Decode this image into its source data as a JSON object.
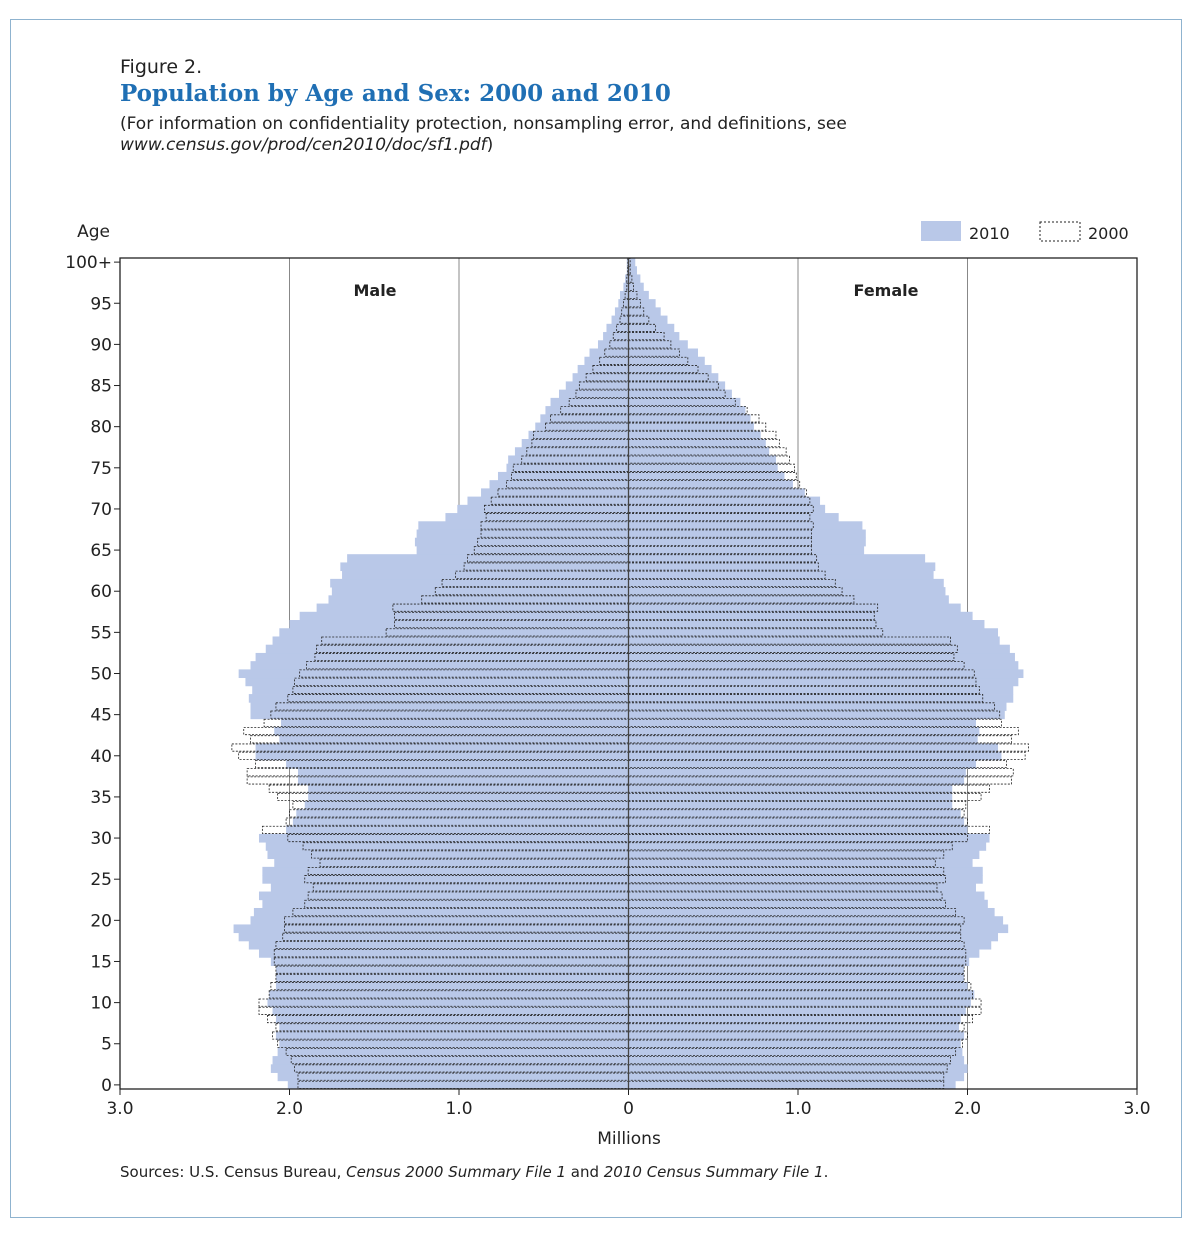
{
  "figure": {
    "label": "Figure 2.",
    "title": "Population by Age and Sex: 2000 and 2010",
    "note_prefix": "(For information on confidentiality protection, nonsampling error, and definitions, see ",
    "note_url": "www.census.gov/prod/cen2010/doc/sf1.pdf",
    "note_suffix": ")",
    "sources_prefix": "Sources: U.S. Census Bureau, ",
    "sources_item1": "Census 2000 Summary File 1",
    "sources_and": " and ",
    "sources_item2": "2010 Census Summary File 1",
    "sources_suffix": "."
  },
  "chart_data": {
    "type": "bar",
    "orientation": "horizontal-population-pyramid",
    "ylabel": "Age",
    "xlabel": "Millions",
    "y_tick_labels": [
      "0",
      "5",
      "10",
      "15",
      "20",
      "25",
      "30",
      "35",
      "40",
      "45",
      "50",
      "55",
      "60",
      "65",
      "70",
      "75",
      "80",
      "85",
      "90",
      "95",
      "100+"
    ],
    "x_tick_labels": [
      "3.0",
      "2.0",
      "1.0",
      "0",
      "1.0",
      "2.0",
      "3.0"
    ],
    "xlim": [
      -3.0,
      3.0
    ],
    "panel_labels": {
      "left": "Male",
      "right": "Female"
    },
    "legend": [
      {
        "name": "2010",
        "style": "filled",
        "color": "#b9c8e8"
      },
      {
        "name": "2000",
        "style": "dotted-outline",
        "color": "#222222"
      }
    ],
    "legend_position": "top-right",
    "grid": {
      "vertical_lines_at": [
        -2.0,
        -1.0,
        1.0,
        2.0
      ]
    },
    "ages": [
      0,
      1,
      2,
      3,
      4,
      5,
      6,
      7,
      8,
      9,
      10,
      11,
      12,
      13,
      14,
      15,
      16,
      17,
      18,
      19,
      20,
      21,
      22,
      23,
      24,
      25,
      26,
      27,
      28,
      29,
      30,
      31,
      32,
      33,
      34,
      35,
      36,
      37,
      38,
      39,
      40,
      41,
      42,
      43,
      44,
      45,
      46,
      47,
      48,
      49,
      50,
      51,
      52,
      53,
      54,
      55,
      56,
      57,
      58,
      59,
      60,
      61,
      62,
      63,
      64,
      65,
      66,
      67,
      68,
      69,
      70,
      71,
      72,
      73,
      74,
      75,
      76,
      77,
      78,
      79,
      80,
      81,
      82,
      83,
      84,
      85,
      86,
      87,
      88,
      89,
      90,
      91,
      92,
      93,
      94,
      95,
      96,
      97,
      98,
      99,
      100
    ],
    "series": [
      {
        "name": "2010",
        "sex": "Male",
        "values": [
          2.01,
          2.07,
          2.11,
          2.1,
          2.07,
          2.06,
          2.08,
          2.06,
          2.08,
          2.1,
          2.13,
          2.12,
          2.08,
          2.08,
          2.08,
          2.11,
          2.18,
          2.24,
          2.3,
          2.33,
          2.23,
          2.21,
          2.16,
          2.18,
          2.11,
          2.16,
          2.16,
          2.09,
          2.13,
          2.14,
          2.18,
          2.02,
          1.98,
          1.96,
          1.91,
          1.89,
          1.89,
          1.95,
          1.95,
          2.02,
          2.2,
          2.2,
          2.06,
          2.09,
          2.05,
          2.23,
          2.23,
          2.24,
          2.22,
          2.26,
          2.3,
          2.23,
          2.2,
          2.14,
          2.1,
          2.06,
          2.0,
          1.94,
          1.84,
          1.77,
          1.75,
          1.76,
          1.69,
          1.7,
          1.66,
          1.25,
          1.26,
          1.25,
          1.24,
          1.08,
          1.01,
          0.95,
          0.87,
          0.82,
          0.77,
          0.72,
          0.71,
          0.67,
          0.63,
          0.59,
          0.55,
          0.52,
          0.49,
          0.46,
          0.41,
          0.37,
          0.33,
          0.3,
          0.26,
          0.23,
          0.18,
          0.15,
          0.13,
          0.1,
          0.08,
          0.06,
          0.05,
          0.03,
          0.02,
          0.01,
          0.01
        ]
      },
      {
        "name": "2000",
        "sex": "Male",
        "values": [
          1.95,
          1.95,
          1.97,
          1.99,
          2.02,
          2.07,
          2.1,
          2.08,
          2.13,
          2.18,
          2.18,
          2.12,
          2.11,
          2.08,
          2.08,
          2.09,
          2.09,
          2.08,
          2.04,
          2.03,
          2.03,
          1.98,
          1.91,
          1.89,
          1.86,
          1.91,
          1.89,
          1.82,
          1.87,
          1.92,
          2.01,
          2.16,
          2.02,
          2.0,
          1.98,
          2.07,
          2.12,
          2.25,
          2.25,
          2.2,
          2.3,
          2.34,
          2.23,
          2.27,
          2.15,
          2.11,
          2.08,
          2.01,
          1.98,
          1.97,
          1.94,
          1.9,
          1.85,
          1.84,
          1.81,
          1.43,
          1.38,
          1.38,
          1.39,
          1.22,
          1.14,
          1.1,
          1.02,
          0.97,
          0.95,
          0.91,
          0.89,
          0.87,
          0.87,
          0.84,
          0.85,
          0.81,
          0.77,
          0.72,
          0.69,
          0.68,
          0.63,
          0.6,
          0.57,
          0.56,
          0.49,
          0.46,
          0.4,
          0.35,
          0.31,
          0.29,
          0.25,
          0.21,
          0.17,
          0.14,
          0.11,
          0.09,
          0.07,
          0.05,
          0.04,
          0.03,
          0.02,
          0.01,
          0.01,
          0.005,
          0.004
        ]
      },
      {
        "name": "2010",
        "sex": "Female",
        "values": [
          1.93,
          1.98,
          2.0,
          1.98,
          1.97,
          1.96,
          1.98,
          1.95,
          1.96,
          1.99,
          2.02,
          2.04,
          2.0,
          1.98,
          1.98,
          2.01,
          2.07,
          2.14,
          2.18,
          2.24,
          2.21,
          2.16,
          2.12,
          2.1,
          2.05,
          2.09,
          2.09,
          2.03,
          2.07,
          2.11,
          2.13,
          2.0,
          1.98,
          1.96,
          1.91,
          1.91,
          1.91,
          1.98,
          1.99,
          2.05,
          2.2,
          2.18,
          2.06,
          2.07,
          2.05,
          2.22,
          2.23,
          2.27,
          2.27,
          2.3,
          2.33,
          2.3,
          2.28,
          2.25,
          2.19,
          2.18,
          2.1,
          2.03,
          1.96,
          1.89,
          1.87,
          1.86,
          1.8,
          1.81,
          1.75,
          1.39,
          1.4,
          1.4,
          1.38,
          1.24,
          1.16,
          1.13,
          1.04,
          0.97,
          0.92,
          0.88,
          0.87,
          0.83,
          0.81,
          0.78,
          0.74,
          0.72,
          0.69,
          0.66,
          0.61,
          0.57,
          0.53,
          0.49,
          0.45,
          0.41,
          0.35,
          0.3,
          0.27,
          0.23,
          0.19,
          0.16,
          0.12,
          0.09,
          0.07,
          0.05,
          0.04
        ]
      },
      {
        "name": "2000",
        "sex": "Female",
        "values": [
          1.86,
          1.86,
          1.88,
          1.9,
          1.93,
          1.97,
          2.0,
          1.98,
          2.03,
          2.08,
          2.08,
          2.03,
          2.02,
          1.98,
          1.98,
          1.99,
          1.99,
          1.98,
          1.96,
          1.96,
          1.98,
          1.93,
          1.87,
          1.85,
          1.82,
          1.87,
          1.86,
          1.81,
          1.86,
          1.91,
          2.0,
          2.13,
          2.0,
          1.98,
          1.99,
          2.08,
          2.13,
          2.26,
          2.27,
          2.23,
          2.34,
          2.36,
          2.26,
          2.3,
          2.2,
          2.19,
          2.16,
          2.09,
          2.07,
          2.05,
          2.04,
          1.98,
          1.92,
          1.94,
          1.9,
          1.5,
          1.46,
          1.45,
          1.47,
          1.33,
          1.26,
          1.22,
          1.16,
          1.12,
          1.11,
          1.08,
          1.08,
          1.08,
          1.09,
          1.07,
          1.09,
          1.07,
          1.05,
          1.01,
          0.99,
          0.98,
          0.95,
          0.93,
          0.89,
          0.87,
          0.81,
          0.77,
          0.7,
          0.63,
          0.57,
          0.53,
          0.47,
          0.41,
          0.35,
          0.3,
          0.25,
          0.21,
          0.16,
          0.12,
          0.09,
          0.07,
          0.05,
          0.03,
          0.02,
          0.01,
          0.01
        ]
      }
    ]
  }
}
